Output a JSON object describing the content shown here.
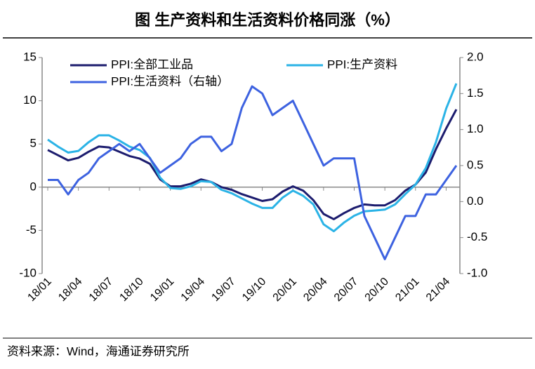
{
  "chart_data": {
    "type": "line",
    "title": "图  生产资料和生活资料价格同涨（%）",
    "source": "资料来源：Wind，海通证券研究所",
    "categories": [
      "18/01",
      null,
      null,
      "18/04",
      null,
      null,
      "18/07",
      null,
      null,
      "18/10",
      null,
      null,
      "19/01",
      null,
      null,
      "19/04",
      null,
      null,
      "19/07",
      null,
      null,
      "19/10",
      null,
      null,
      "20/01",
      null,
      null,
      "20/04",
      null,
      null,
      "20/07",
      null,
      null,
      "20/10",
      null,
      null,
      "21/01",
      null,
      null,
      "21/04",
      null
    ],
    "ylim": [
      -10,
      15
    ],
    "yticks": [
      15,
      10,
      5,
      0,
      -5,
      -10
    ],
    "y2lim": [
      -1,
      2
    ],
    "y2ticks": [
      {
        "value": 2,
        "label": "2.0"
      },
      {
        "value": 1.5,
        "label": "1.5"
      },
      {
        "value": 1,
        "label": "1.0"
      },
      {
        "value": 0.5,
        "label": "0.5"
      },
      {
        "value": 0,
        "label": "0.0"
      },
      {
        "value": -0.5,
        "label": "-0.5"
      },
      {
        "value": -1,
        "label": "-1.0"
      }
    ],
    "series": [
      {
        "name": "PPI:全部工业品",
        "color": "#1c1c6e",
        "values": [
          4.3,
          3.7,
          3.1,
          3.4,
          4.1,
          4.7,
          4.6,
          4.1,
          3.6,
          3.3,
          2.7,
          0.9,
          0.1,
          0.1,
          0.4,
          0.9,
          0.6,
          0.0,
          -0.3,
          -0.8,
          -1.2,
          -1.6,
          -1.4,
          -0.5,
          0.1,
          -0.4,
          -1.5,
          -3.1,
          -3.7,
          -3.0,
          -2.4,
          -2.0,
          -2.1,
          -2.1,
          -1.5,
          -0.4,
          0.3,
          1.7,
          4.4,
          6.8,
          9.0
        ]
      },
      {
        "name": "PPI:生产资料",
        "color": "#2bb3e6",
        "values": [
          5.5,
          4.7,
          4.0,
          4.2,
          5.2,
          6.0,
          6.0,
          5.4,
          4.7,
          4.3,
          3.4,
          1.1,
          -0.1,
          -0.2,
          0.1,
          0.7,
          0.6,
          -0.3,
          -0.7,
          -1.3,
          -1.9,
          -2.4,
          -2.4,
          -1.2,
          -0.4,
          -1.0,
          -2.0,
          -4.3,
          -5.1,
          -4.1,
          -3.3,
          -2.8,
          -2.7,
          -2.6,
          -2.0,
          -0.8,
          0.3,
          2.2,
          5.2,
          9.1,
          12.0
        ]
      },
      {
        "name": "PPI:生活资料（右轴）",
        "color": "#3d62e0",
        "axis": "y2",
        "values": [
          0.3,
          0.3,
          0.1,
          0.3,
          0.4,
          0.6,
          0.7,
          0.8,
          0.7,
          0.8,
          0.6,
          0.4,
          0.5,
          0.6,
          0.8,
          0.9,
          0.9,
          0.7,
          0.8,
          1.3,
          1.6,
          1.5,
          1.2,
          1.3,
          1.4,
          1.1,
          0.8,
          0.5,
          0.6,
          0.6,
          0.6,
          -0.2,
          -0.5,
          -0.8,
          -0.5,
          -0.2,
          -0.2,
          0.1,
          0.1,
          0.3,
          0.5
        ]
      }
    ]
  }
}
